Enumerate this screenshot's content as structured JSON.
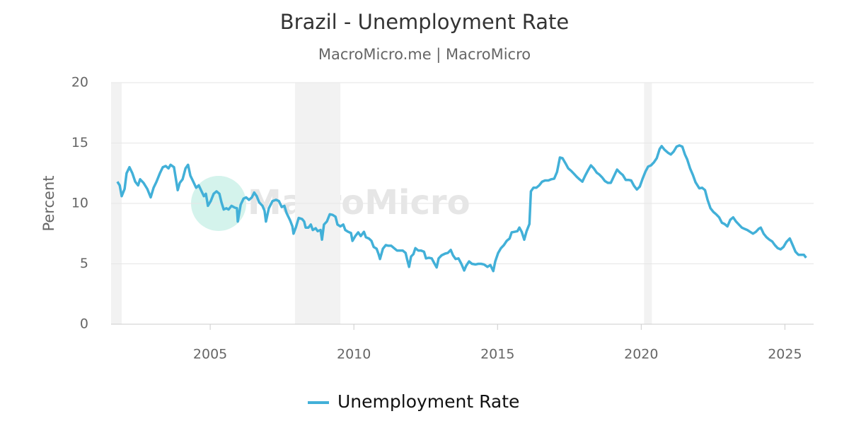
{
  "chart_data": {
    "type": "line",
    "title": "Brazil - Unemployment Rate",
    "subtitle": "MacroMicro.me | MacroMicro",
    "watermark": "MacroMicro",
    "y_label": "Percent",
    "x": [
      2001.77,
      2001.85,
      2001.92,
      2002.02,
      2002.09,
      2002.19,
      2002.29,
      2002.39,
      2002.49,
      2002.56,
      2002.68,
      2002.81,
      2002.93,
      2003.03,
      2003.13,
      2003.25,
      2003.35,
      2003.45,
      2003.55,
      2003.62,
      2003.74,
      2003.87,
      2003.94,
      2004.04,
      2004.14,
      2004.23,
      2004.31,
      2004.41,
      2004.51,
      2004.6,
      2004.7,
      2004.78,
      2004.85,
      2004.92,
      2005.02,
      2005.12,
      2005.22,
      2005.32,
      2005.39,
      2005.47,
      2005.56,
      2005.64,
      2005.74,
      2005.86,
      2005.93,
      2005.96,
      2006.06,
      2006.16,
      2006.25,
      2006.35,
      2006.45,
      2006.53,
      2006.62,
      2006.7,
      2006.82,
      2006.89,
      2006.94,
      2007.04,
      2007.17,
      2007.29,
      2007.39,
      2007.49,
      2007.58,
      2007.66,
      2007.78,
      2007.86,
      2007.9,
      2007.98,
      2008.08,
      2008.2,
      2008.27,
      2008.32,
      2008.42,
      2008.5,
      2008.57,
      2008.67,
      2008.74,
      2008.84,
      2008.89,
      2008.96,
      2009.06,
      2009.16,
      2009.26,
      2009.36,
      2009.43,
      2009.53,
      2009.63,
      2009.7,
      2009.8,
      2009.9,
      2009.95,
      2010.05,
      2010.15,
      2010.24,
      2010.35,
      2010.42,
      2010.52,
      2010.61,
      2010.69,
      2010.79,
      2010.86,
      2010.91,
      2011.01,
      2011.11,
      2011.2,
      2011.3,
      2011.4,
      2011.5,
      2011.6,
      2011.7,
      2011.8,
      2011.85,
      2011.92,
      2011.99,
      2012.07,
      2012.14,
      2012.24,
      2012.34,
      2012.44,
      2012.51,
      2012.61,
      2012.71,
      2012.81,
      2012.88,
      2012.95,
      2013.05,
      2013.18,
      2013.27,
      2013.37,
      2013.45,
      2013.54,
      2013.64,
      2013.74,
      2013.84,
      2013.91,
      2014.01,
      2014.11,
      2014.23,
      2014.33,
      2014.43,
      2014.53,
      2014.65,
      2014.75,
      2014.85,
      2014.92,
      2015.02,
      2015.12,
      2015.22,
      2015.32,
      2015.42,
      2015.49,
      2015.59,
      2015.69,
      2015.76,
      2015.84,
      2015.93,
      2016.01,
      2016.11,
      2016.16,
      2016.25,
      2016.35,
      2016.45,
      2016.55,
      2016.65,
      2016.77,
      2016.87,
      2016.97,
      2017.07,
      2017.17,
      2017.26,
      2017.37,
      2017.46,
      2017.56,
      2017.66,
      2017.76,
      2017.85,
      2017.95,
      2018.05,
      2018.15,
      2018.25,
      2018.35,
      2018.45,
      2018.54,
      2018.64,
      2018.74,
      2018.84,
      2018.94,
      2019.04,
      2019.16,
      2019.26,
      2019.36,
      2019.46,
      2019.56,
      2019.65,
      2019.75,
      2019.85,
      2019.95,
      2020.05,
      2020.15,
      2020.24,
      2020.34,
      2020.44,
      2020.54,
      2020.64,
      2020.71,
      2020.81,
      2020.93,
      2021.03,
      2021.13,
      2021.23,
      2021.33,
      2021.43,
      2021.52,
      2021.6,
      2021.7,
      2021.8,
      2021.89,
      2022.02,
      2022.12,
      2022.22,
      2022.31,
      2022.41,
      2022.51,
      2022.61,
      2022.71,
      2022.81,
      2022.9,
      2023.0,
      2023.1,
      2023.2,
      2023.3,
      2023.4,
      2023.5,
      2023.59,
      2023.69,
      2023.79,
      2023.89,
      2023.99,
      2024.09,
      2024.16,
      2024.26,
      2024.36,
      2024.46,
      2024.56,
      2024.65,
      2024.75,
      2024.85,
      2024.95,
      2025.05,
      2025.17,
      2025.27,
      2025.37,
      2025.47,
      2025.56,
      2025.66,
      2025.74
    ],
    "series": [
      {
        "name": "Unemployment Rate",
        "color": "#42b0d8",
        "values": [
          11.8,
          11.5,
          10.6,
          11.2,
          12.5,
          13.0,
          12.5,
          11.8,
          11.5,
          12.0,
          11.7,
          11.2,
          10.5,
          11.3,
          11.8,
          12.5,
          13.0,
          13.1,
          12.9,
          13.2,
          13.0,
          11.1,
          11.7,
          12.0,
          12.9,
          13.2,
          12.3,
          11.8,
          11.3,
          11.5,
          11.0,
          10.6,
          10.8,
          9.8,
          10.2,
          10.8,
          11.0,
          10.8,
          10.1,
          9.5,
          9.6,
          9.5,
          9.8,
          9.65,
          9.6,
          8.5,
          9.9,
          10.4,
          10.5,
          10.3,
          10.5,
          10.9,
          10.6,
          10.1,
          9.8,
          9.4,
          8.5,
          9.6,
          10.2,
          10.3,
          10.2,
          9.7,
          9.8,
          9.2,
          8.6,
          8.1,
          7.5,
          8.0,
          8.8,
          8.7,
          8.5,
          8.0,
          8.0,
          8.25,
          7.8,
          7.95,
          7.7,
          7.8,
          7.0,
          8.25,
          8.5,
          9.1,
          9.05,
          8.9,
          8.25,
          8.1,
          8.25,
          7.8,
          7.65,
          7.55,
          6.9,
          7.3,
          7.6,
          7.3,
          7.65,
          7.2,
          7.1,
          6.9,
          6.4,
          6.25,
          5.8,
          5.4,
          6.25,
          6.55,
          6.5,
          6.5,
          6.3,
          6.1,
          6.1,
          6.1,
          5.9,
          5.4,
          4.75,
          5.6,
          5.8,
          6.3,
          6.1,
          6.1,
          6.0,
          5.45,
          5.5,
          5.45,
          5.0,
          4.7,
          5.45,
          5.7,
          5.85,
          5.9,
          6.15,
          5.7,
          5.4,
          5.45,
          5.0,
          4.45,
          4.85,
          5.2,
          5.0,
          4.95,
          5.0,
          5.0,
          4.95,
          4.75,
          4.9,
          4.4,
          5.2,
          5.9,
          6.3,
          6.55,
          6.9,
          7.1,
          7.6,
          7.65,
          7.7,
          8.0,
          7.65,
          7.0,
          7.7,
          8.3,
          11.0,
          11.3,
          11.3,
          11.5,
          11.8,
          11.9,
          11.9,
          12.0,
          12.05,
          12.6,
          13.8,
          13.75,
          13.3,
          12.9,
          12.7,
          12.45,
          12.2,
          12.0,
          11.8,
          12.3,
          12.75,
          13.15,
          12.9,
          12.55,
          12.4,
          12.15,
          11.85,
          11.7,
          11.7,
          12.2,
          12.8,
          12.55,
          12.35,
          11.95,
          11.95,
          11.9,
          11.45,
          11.15,
          11.4,
          12.05,
          12.65,
          13.05,
          13.15,
          13.4,
          13.75,
          14.5,
          14.75,
          14.45,
          14.2,
          14.05,
          14.3,
          14.7,
          14.8,
          14.7,
          14.05,
          13.65,
          12.9,
          12.35,
          11.75,
          11.25,
          11.3,
          11.1,
          10.3,
          9.6,
          9.3,
          9.1,
          8.85,
          8.4,
          8.3,
          8.1,
          8.65,
          8.85,
          8.5,
          8.25,
          8.0,
          7.9,
          7.8,
          7.65,
          7.5,
          7.65,
          7.9,
          8.0,
          7.5,
          7.2,
          7.0,
          6.85,
          6.55,
          6.3,
          6.2,
          6.4,
          6.8,
          7.1,
          6.55,
          6.0,
          5.75,
          5.75,
          5.75,
          5.5
        ]
      }
    ],
    "shaded_periods": [
      [
        2001.55,
        2001.92
      ],
      [
        2007.95,
        2009.53
      ],
      [
        2020.1,
        2020.37
      ]
    ],
    "xlim": [
      2001.55,
      2026.0
    ],
    "xticks": [
      2005,
      2010,
      2015,
      2020,
      2025
    ],
    "ylim": [
      0,
      20
    ],
    "yticks": [
      0,
      5,
      10,
      15,
      20
    ],
    "grid": true
  }
}
